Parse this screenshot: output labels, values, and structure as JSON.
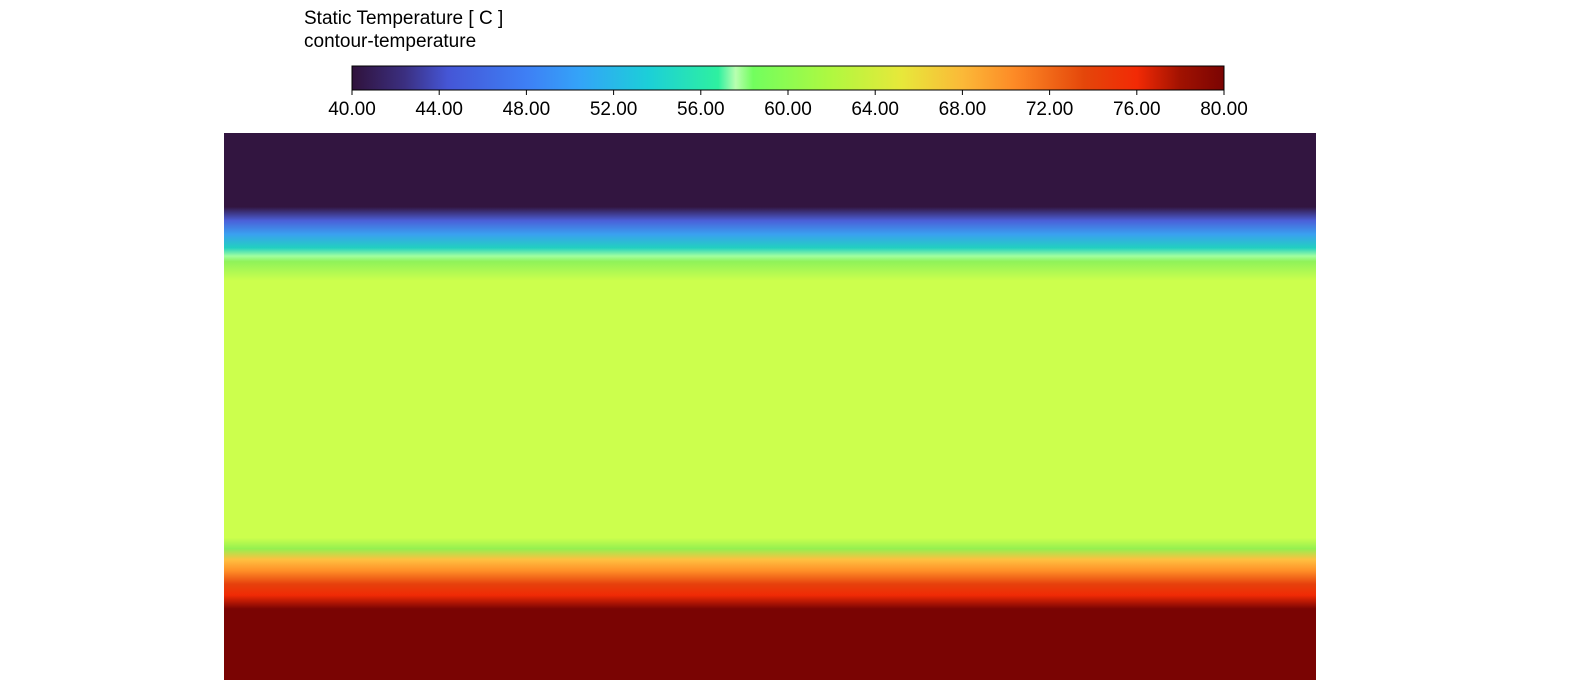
{
  "legend": {
    "title": "Static Temperature [ C ]",
    "subtitle": "contour-temperature",
    "range": [
      40,
      80
    ],
    "ticks": [
      {
        "value": 40,
        "label": "40.00"
      },
      {
        "value": 44,
        "label": "44.00"
      },
      {
        "value": 48,
        "label": "48.00"
      },
      {
        "value": 52,
        "label": "52.00"
      },
      {
        "value": 56,
        "label": "56.00"
      },
      {
        "value": 60,
        "label": "60.00"
      },
      {
        "value": 64,
        "label": "64.00"
      },
      {
        "value": 68,
        "label": "68.00"
      },
      {
        "value": 72,
        "label": "72.00"
      },
      {
        "value": 76,
        "label": "76.00"
      },
      {
        "value": 80,
        "label": "80.00"
      }
    ]
  }
}
